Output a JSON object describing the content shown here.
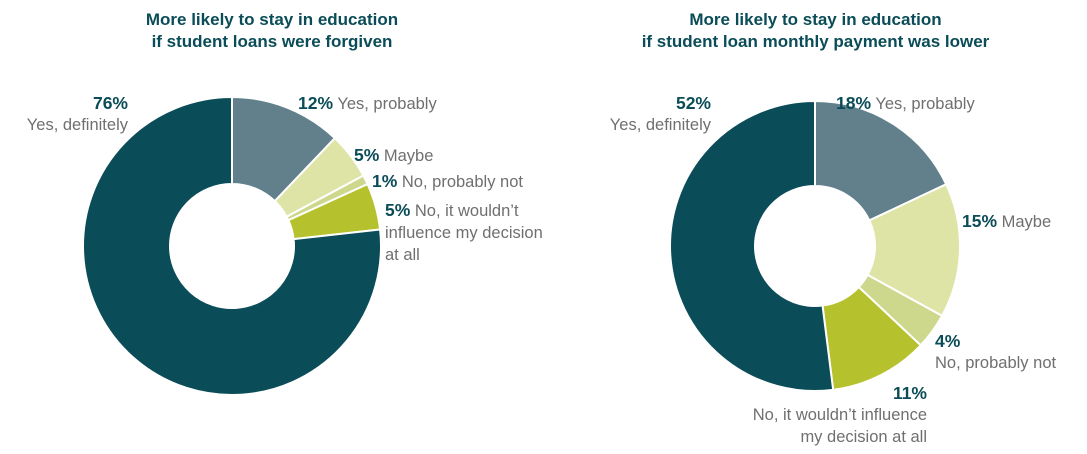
{
  "chart_data": [
    {
      "type": "pie",
      "title": [
        "More likely to stay in education",
        "if student loans were forgiven"
      ],
      "slices": [
        {
          "label": "Yes, probably",
          "pct_label": "12%",
          "value": 12,
          "color": "#62808b"
        },
        {
          "label": "Maybe",
          "pct_label": "5%",
          "value": 5,
          "color": "#dde4a6"
        },
        {
          "label": "No, probably not",
          "pct_label": "1%",
          "value": 1,
          "color": "#cdd88d"
        },
        {
          "label": "No, it wouldn’t influence my decision at all",
          "pct_label": "5%",
          "value": 5,
          "color": "#b5c22e"
        },
        {
          "label": "Yes, definitely",
          "pct_label": "76%",
          "value": 76,
          "color": "#0a4c57"
        }
      ]
    },
    {
      "type": "pie",
      "title": [
        "More likely to stay in education",
        "if student loan monthly payment was lower"
      ],
      "slices": [
        {
          "label": "Yes, probably",
          "pct_label": "18%",
          "value": 18,
          "color": "#62808b"
        },
        {
          "label": "Maybe",
          "pct_label": "15%",
          "value": 15,
          "color": "#dde4a6"
        },
        {
          "label": "No, probably not",
          "pct_label": "4%",
          "value": 4,
          "color": "#cdd88d"
        },
        {
          "label": "No, it wouldn’t influence my decision at all",
          "pct_label": "11%",
          "value": 11,
          "color": "#b5c22e"
        },
        {
          "label": "Yes, definitely",
          "pct_label": "52%",
          "value": 52,
          "color": "#0a4c57"
        }
      ]
    }
  ],
  "left_labels": {
    "definitely_line2": "Yes, definitely",
    "influence_line1": "No, it wouldn’t",
    "influence_line2": "influence my decision",
    "influence_line3": "at all"
  },
  "right_labels": {
    "definitely_line2": "Yes, definitely",
    "probably_not_line2": "No, probably not",
    "influence_line2": "No, it wouldn’t influence",
    "influence_line3": "my decision at all"
  }
}
